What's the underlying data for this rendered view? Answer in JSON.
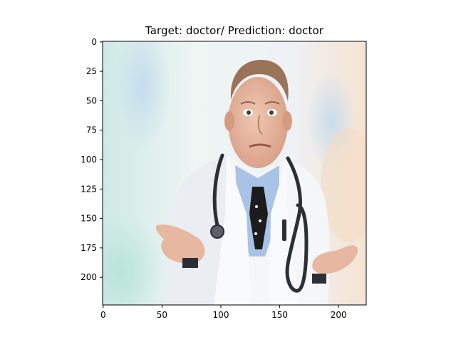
{
  "figure": {
    "title": "Target: doctor/ Prediction: doctor"
  },
  "image_size": [
    224,
    224
  ],
  "axes": {
    "y_ticks": [
      0,
      25,
      50,
      75,
      100,
      125,
      150,
      175,
      200
    ],
    "x_ticks": [
      0,
      50,
      100,
      150,
      200
    ],
    "xlim": [
      -0.5,
      223.5
    ],
    "ylim": [
      223.5,
      -0.5
    ]
  },
  "image_content": {
    "subject": "older doctor in white coat with stethoscope shrugging with both hands raised",
    "background": "blurred hospital corridor"
  },
  "colors": {
    "coat": "#f4f6f8",
    "shirt": "#a9c3e6",
    "tie": "#1c1c1c",
    "skin": "#e6b8a0",
    "hair": "#9a7358",
    "stethoscope": "#2b2f36",
    "bg_teal": "#cfeae6",
    "bg_peach": "#f5e4d2"
  }
}
